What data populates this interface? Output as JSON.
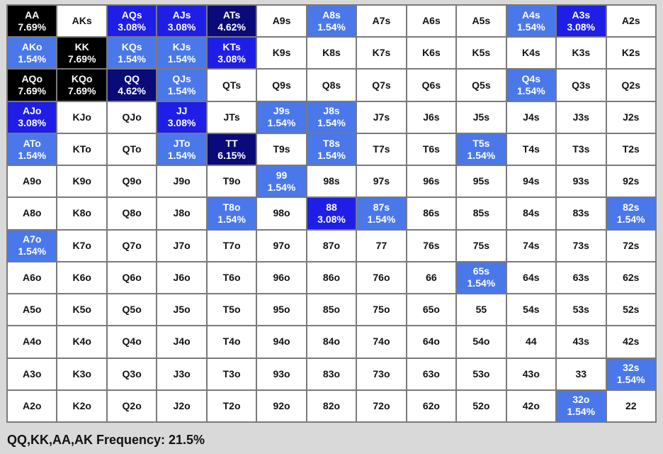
{
  "grid": {
    "colors": {
      "w": "#ffffff",
      "lt": "#4a78ea",
      "md": "#1e1ee6",
      "dk": "#0a0a78",
      "bk": "#000000"
    },
    "rows": [
      [
        {
          "hand": "AA",
          "freq": "7.69%",
          "shade": "bk"
        },
        {
          "hand": "AKs",
          "freq": "",
          "shade": "w"
        },
        {
          "hand": "AQs",
          "freq": "3.08%",
          "shade": "md"
        },
        {
          "hand": "AJs",
          "freq": "3.08%",
          "shade": "md"
        },
        {
          "hand": "ATs",
          "freq": "4.62%",
          "shade": "dk"
        },
        {
          "hand": "A9s",
          "freq": "",
          "shade": "w"
        },
        {
          "hand": "A8s",
          "freq": "1.54%",
          "shade": "lt"
        },
        {
          "hand": "A7s",
          "freq": "",
          "shade": "w"
        },
        {
          "hand": "A6s",
          "freq": "",
          "shade": "w"
        },
        {
          "hand": "A5s",
          "freq": "",
          "shade": "w"
        },
        {
          "hand": "A4s",
          "freq": "1.54%",
          "shade": "lt"
        },
        {
          "hand": "A3s",
          "freq": "3.08%",
          "shade": "md"
        },
        {
          "hand": "A2s",
          "freq": "",
          "shade": "w"
        }
      ],
      [
        {
          "hand": "AKo",
          "freq": "1.54%",
          "shade": "lt"
        },
        {
          "hand": "KK",
          "freq": "7.69%",
          "shade": "bk"
        },
        {
          "hand": "KQs",
          "freq": "1.54%",
          "shade": "lt"
        },
        {
          "hand": "KJs",
          "freq": "1.54%",
          "shade": "lt"
        },
        {
          "hand": "KTs",
          "freq": "3.08%",
          "shade": "md"
        },
        {
          "hand": "K9s",
          "freq": "",
          "shade": "w"
        },
        {
          "hand": "K8s",
          "freq": "",
          "shade": "w"
        },
        {
          "hand": "K7s",
          "freq": "",
          "shade": "w"
        },
        {
          "hand": "K6s",
          "freq": "",
          "shade": "w"
        },
        {
          "hand": "K5s",
          "freq": "",
          "shade": "w"
        },
        {
          "hand": "K4s",
          "freq": "",
          "shade": "w"
        },
        {
          "hand": "K3s",
          "freq": "",
          "shade": "w"
        },
        {
          "hand": "K2s",
          "freq": "",
          "shade": "w"
        }
      ],
      [
        {
          "hand": "AQo",
          "freq": "7.69%",
          "shade": "bk"
        },
        {
          "hand": "KQo",
          "freq": "7.69%",
          "shade": "bk"
        },
        {
          "hand": "QQ",
          "freq": "4.62%",
          "shade": "dk"
        },
        {
          "hand": "QJs",
          "freq": "1.54%",
          "shade": "lt"
        },
        {
          "hand": "QTs",
          "freq": "",
          "shade": "w"
        },
        {
          "hand": "Q9s",
          "freq": "",
          "shade": "w"
        },
        {
          "hand": "Q8s",
          "freq": "",
          "shade": "w"
        },
        {
          "hand": "Q7s",
          "freq": "",
          "shade": "w"
        },
        {
          "hand": "Q6s",
          "freq": "",
          "shade": "w"
        },
        {
          "hand": "Q5s",
          "freq": "",
          "shade": "w"
        },
        {
          "hand": "Q4s",
          "freq": "1.54%",
          "shade": "lt"
        },
        {
          "hand": "Q3s",
          "freq": "",
          "shade": "w"
        },
        {
          "hand": "Q2s",
          "freq": "",
          "shade": "w"
        }
      ],
      [
        {
          "hand": "AJo",
          "freq": "3.08%",
          "shade": "md"
        },
        {
          "hand": "KJo",
          "freq": "",
          "shade": "w"
        },
        {
          "hand": "QJo",
          "freq": "",
          "shade": "w"
        },
        {
          "hand": "JJ",
          "freq": "3.08%",
          "shade": "md"
        },
        {
          "hand": "JTs",
          "freq": "",
          "shade": "w"
        },
        {
          "hand": "J9s",
          "freq": "1.54%",
          "shade": "lt"
        },
        {
          "hand": "J8s",
          "freq": "1.54%",
          "shade": "lt"
        },
        {
          "hand": "J7s",
          "freq": "",
          "shade": "w"
        },
        {
          "hand": "J6s",
          "freq": "",
          "shade": "w"
        },
        {
          "hand": "J5s",
          "freq": "",
          "shade": "w"
        },
        {
          "hand": "J4s",
          "freq": "",
          "shade": "w"
        },
        {
          "hand": "J3s",
          "freq": "",
          "shade": "w"
        },
        {
          "hand": "J2s",
          "freq": "",
          "shade": "w"
        }
      ],
      [
        {
          "hand": "ATo",
          "freq": "1.54%",
          "shade": "lt"
        },
        {
          "hand": "KTo",
          "freq": "",
          "shade": "w"
        },
        {
          "hand": "QTo",
          "freq": "",
          "shade": "w"
        },
        {
          "hand": "JTo",
          "freq": "1.54%",
          "shade": "lt"
        },
        {
          "hand": "TT",
          "freq": "6.15%",
          "shade": "dk"
        },
        {
          "hand": "T9s",
          "freq": "",
          "shade": "w"
        },
        {
          "hand": "T8s",
          "freq": "1.54%",
          "shade": "lt"
        },
        {
          "hand": "T7s",
          "freq": "",
          "shade": "w"
        },
        {
          "hand": "T6s",
          "freq": "",
          "shade": "w"
        },
        {
          "hand": "T5s",
          "freq": "1.54%",
          "shade": "lt"
        },
        {
          "hand": "T4s",
          "freq": "",
          "shade": "w"
        },
        {
          "hand": "T3s",
          "freq": "",
          "shade": "w"
        },
        {
          "hand": "T2s",
          "freq": "",
          "shade": "w"
        }
      ],
      [
        {
          "hand": "A9o",
          "freq": "",
          "shade": "w"
        },
        {
          "hand": "K9o",
          "freq": "",
          "shade": "w"
        },
        {
          "hand": "Q9o",
          "freq": "",
          "shade": "w"
        },
        {
          "hand": "J9o",
          "freq": "",
          "shade": "w"
        },
        {
          "hand": "T9o",
          "freq": "",
          "shade": "w"
        },
        {
          "hand": "99",
          "freq": "1.54%",
          "shade": "lt"
        },
        {
          "hand": "98s",
          "freq": "",
          "shade": "w"
        },
        {
          "hand": "97s",
          "freq": "",
          "shade": "w"
        },
        {
          "hand": "96s",
          "freq": "",
          "shade": "w"
        },
        {
          "hand": "95s",
          "freq": "",
          "shade": "w"
        },
        {
          "hand": "94s",
          "freq": "",
          "shade": "w"
        },
        {
          "hand": "93s",
          "freq": "",
          "shade": "w"
        },
        {
          "hand": "92s",
          "freq": "",
          "shade": "w"
        }
      ],
      [
        {
          "hand": "A8o",
          "freq": "",
          "shade": "w"
        },
        {
          "hand": "K8o",
          "freq": "",
          "shade": "w"
        },
        {
          "hand": "Q8o",
          "freq": "",
          "shade": "w"
        },
        {
          "hand": "J8o",
          "freq": "",
          "shade": "w"
        },
        {
          "hand": "T8o",
          "freq": "1.54%",
          "shade": "lt"
        },
        {
          "hand": "98o",
          "freq": "",
          "shade": "w"
        },
        {
          "hand": "88",
          "freq": "3.08%",
          "shade": "md"
        },
        {
          "hand": "87s",
          "freq": "1.54%",
          "shade": "lt"
        },
        {
          "hand": "86s",
          "freq": "",
          "shade": "w"
        },
        {
          "hand": "85s",
          "freq": "",
          "shade": "w"
        },
        {
          "hand": "84s",
          "freq": "",
          "shade": "w"
        },
        {
          "hand": "83s",
          "freq": "",
          "shade": "w"
        },
        {
          "hand": "82s",
          "freq": "1.54%",
          "shade": "lt"
        }
      ],
      [
        {
          "hand": "A7o",
          "freq": "1.54%",
          "shade": "lt"
        },
        {
          "hand": "K7o",
          "freq": "",
          "shade": "w"
        },
        {
          "hand": "Q7o",
          "freq": "",
          "shade": "w"
        },
        {
          "hand": "J7o",
          "freq": "",
          "shade": "w"
        },
        {
          "hand": "T7o",
          "freq": "",
          "shade": "w"
        },
        {
          "hand": "97o",
          "freq": "",
          "shade": "w"
        },
        {
          "hand": "87o",
          "freq": "",
          "shade": "w"
        },
        {
          "hand": "77",
          "freq": "",
          "shade": "w"
        },
        {
          "hand": "76s",
          "freq": "",
          "shade": "w"
        },
        {
          "hand": "75s",
          "freq": "",
          "shade": "w"
        },
        {
          "hand": "74s",
          "freq": "",
          "shade": "w"
        },
        {
          "hand": "73s",
          "freq": "",
          "shade": "w"
        },
        {
          "hand": "72s",
          "freq": "",
          "shade": "w"
        }
      ],
      [
        {
          "hand": "A6o",
          "freq": "",
          "shade": "w"
        },
        {
          "hand": "K6o",
          "freq": "",
          "shade": "w"
        },
        {
          "hand": "Q6o",
          "freq": "",
          "shade": "w"
        },
        {
          "hand": "J6o",
          "freq": "",
          "shade": "w"
        },
        {
          "hand": "T6o",
          "freq": "",
          "shade": "w"
        },
        {
          "hand": "96o",
          "freq": "",
          "shade": "w"
        },
        {
          "hand": "86o",
          "freq": "",
          "shade": "w"
        },
        {
          "hand": "76o",
          "freq": "",
          "shade": "w"
        },
        {
          "hand": "66",
          "freq": "",
          "shade": "w"
        },
        {
          "hand": "65s",
          "freq": "1.54%",
          "shade": "lt"
        },
        {
          "hand": "64s",
          "freq": "",
          "shade": "w"
        },
        {
          "hand": "63s",
          "freq": "",
          "shade": "w"
        },
        {
          "hand": "62s",
          "freq": "",
          "shade": "w"
        }
      ],
      [
        {
          "hand": "A5o",
          "freq": "",
          "shade": "w"
        },
        {
          "hand": "K5o",
          "freq": "",
          "shade": "w"
        },
        {
          "hand": "Q5o",
          "freq": "",
          "shade": "w"
        },
        {
          "hand": "J5o",
          "freq": "",
          "shade": "w"
        },
        {
          "hand": "T5o",
          "freq": "",
          "shade": "w"
        },
        {
          "hand": "95o",
          "freq": "",
          "shade": "w"
        },
        {
          "hand": "85o",
          "freq": "",
          "shade": "w"
        },
        {
          "hand": "75o",
          "freq": "",
          "shade": "w"
        },
        {
          "hand": "65o",
          "freq": "",
          "shade": "w"
        },
        {
          "hand": "55",
          "freq": "",
          "shade": "w"
        },
        {
          "hand": "54s",
          "freq": "",
          "shade": "w"
        },
        {
          "hand": "53s",
          "freq": "",
          "shade": "w"
        },
        {
          "hand": "52s",
          "freq": "",
          "shade": "w"
        }
      ],
      [
        {
          "hand": "A4o",
          "freq": "",
          "shade": "w"
        },
        {
          "hand": "K4o",
          "freq": "",
          "shade": "w"
        },
        {
          "hand": "Q4o",
          "freq": "",
          "shade": "w"
        },
        {
          "hand": "J4o",
          "freq": "",
          "shade": "w"
        },
        {
          "hand": "T4o",
          "freq": "",
          "shade": "w"
        },
        {
          "hand": "94o",
          "freq": "",
          "shade": "w"
        },
        {
          "hand": "84o",
          "freq": "",
          "shade": "w"
        },
        {
          "hand": "74o",
          "freq": "",
          "shade": "w"
        },
        {
          "hand": "64o",
          "freq": "",
          "shade": "w"
        },
        {
          "hand": "54o",
          "freq": "",
          "shade": "w"
        },
        {
          "hand": "44",
          "freq": "",
          "shade": "w"
        },
        {
          "hand": "43s",
          "freq": "",
          "shade": "w"
        },
        {
          "hand": "42s",
          "freq": "",
          "shade": "w"
        }
      ],
      [
        {
          "hand": "A3o",
          "freq": "",
          "shade": "w"
        },
        {
          "hand": "K3o",
          "freq": "",
          "shade": "w"
        },
        {
          "hand": "Q3o",
          "freq": "",
          "shade": "w"
        },
        {
          "hand": "J3o",
          "freq": "",
          "shade": "w"
        },
        {
          "hand": "T3o",
          "freq": "",
          "shade": "w"
        },
        {
          "hand": "93o",
          "freq": "",
          "shade": "w"
        },
        {
          "hand": "83o",
          "freq": "",
          "shade": "w"
        },
        {
          "hand": "73o",
          "freq": "",
          "shade": "w"
        },
        {
          "hand": "63o",
          "freq": "",
          "shade": "w"
        },
        {
          "hand": "53o",
          "freq": "",
          "shade": "w"
        },
        {
          "hand": "43o",
          "freq": "",
          "shade": "w"
        },
        {
          "hand": "33",
          "freq": "",
          "shade": "w"
        },
        {
          "hand": "32s",
          "freq": "1.54%",
          "shade": "lt"
        }
      ],
      [
        {
          "hand": "A2o",
          "freq": "",
          "shade": "w"
        },
        {
          "hand": "K2o",
          "freq": "",
          "shade": "w"
        },
        {
          "hand": "Q2o",
          "freq": "",
          "shade": "w"
        },
        {
          "hand": "J2o",
          "freq": "",
          "shade": "w"
        },
        {
          "hand": "T2o",
          "freq": "",
          "shade": "w"
        },
        {
          "hand": "92o",
          "freq": "",
          "shade": "w"
        },
        {
          "hand": "82o",
          "freq": "",
          "shade": "w"
        },
        {
          "hand": "72o",
          "freq": "",
          "shade": "w"
        },
        {
          "hand": "62o",
          "freq": "",
          "shade": "w"
        },
        {
          "hand": "52o",
          "freq": "",
          "shade": "w"
        },
        {
          "hand": "42o",
          "freq": "",
          "shade": "w"
        },
        {
          "hand": "32o",
          "freq": "1.54%",
          "shade": "lt"
        },
        {
          "hand": "22",
          "freq": "",
          "shade": "w"
        }
      ]
    ]
  },
  "footer": {
    "summary": "QQ,KK,AA,AK Frequency: 21.5%"
  }
}
